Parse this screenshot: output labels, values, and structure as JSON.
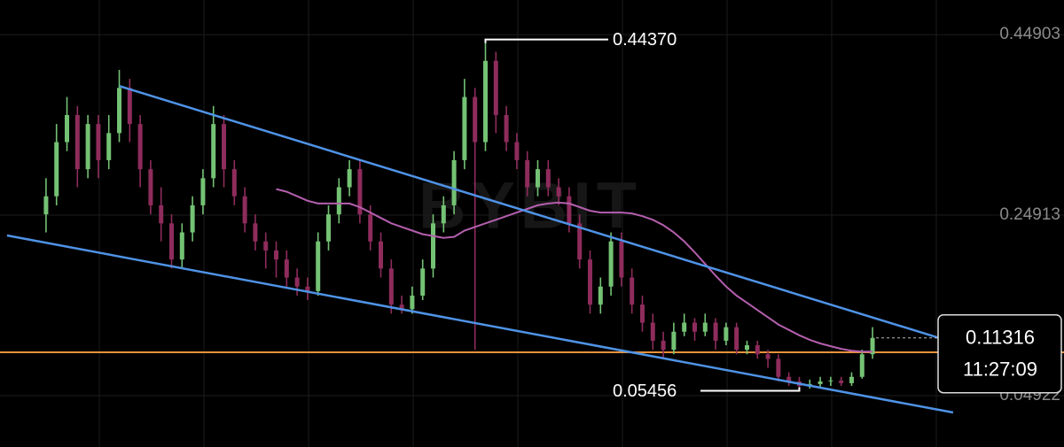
{
  "chart_data": {
    "type": "candlestick",
    "watermark": "BYBIT",
    "xlim": [
      -4.4,
      97.3
    ],
    "ylim": [
      -0.0077,
      0.4874
    ],
    "yticks": [
      0.44903,
      0.24913,
      0.04922
    ],
    "grid": true,
    "up_color": "#74c274",
    "down_color": "#8e2c5c",
    "candles": {
      "open": [
        0.25,
        0.27,
        0.33,
        0.36,
        0.3,
        0.35,
        0.31,
        0.34,
        0.39,
        0.35,
        0.3,
        0.26,
        0.24,
        0.2,
        0.23,
        0.26,
        0.29,
        0.35,
        0.3,
        0.27,
        0.24,
        0.22,
        0.21,
        0.2,
        0.18,
        0.17,
        0.165,
        0.22,
        0.25,
        0.28,
        0.3,
        0.25,
        0.22,
        0.19,
        0.15,
        0.145,
        0.16,
        0.19,
        0.24,
        0.26,
        0.31,
        0.38,
        0.33,
        0.42,
        0.36,
        0.33,
        0.31,
        0.28,
        0.3,
        0.28,
        0.27,
        0.24,
        0.2,
        0.15,
        0.17,
        0.22,
        0.18,
        0.15,
        0.13,
        0.11,
        0.1,
        0.12,
        0.13,
        0.12,
        0.13,
        0.11,
        0.125,
        0.1,
        0.105,
        0.095,
        0.09,
        0.07,
        0.065,
        0.06,
        0.062,
        0.065,
        0.066,
        0.063,
        0.07,
        0.095
      ],
      "high": [
        0.29,
        0.35,
        0.38,
        0.37,
        0.36,
        0.36,
        0.36,
        0.41,
        0.4,
        0.36,
        0.31,
        0.28,
        0.25,
        0.24,
        0.27,
        0.3,
        0.37,
        0.36,
        0.31,
        0.28,
        0.25,
        0.23,
        0.22,
        0.21,
        0.19,
        0.18,
        0.23,
        0.26,
        0.29,
        0.31,
        0.31,
        0.26,
        0.23,
        0.2,
        0.16,
        0.17,
        0.2,
        0.25,
        0.27,
        0.32,
        0.4,
        0.39,
        0.4437,
        0.43,
        0.37,
        0.34,
        0.32,
        0.31,
        0.31,
        0.29,
        0.28,
        0.25,
        0.21,
        0.18,
        0.23,
        0.23,
        0.19,
        0.16,
        0.14,
        0.12,
        0.13,
        0.14,
        0.135,
        0.14,
        0.135,
        0.13,
        0.13,
        0.11,
        0.11,
        0.1,
        0.095,
        0.075,
        0.07,
        0.067,
        0.07,
        0.07,
        0.07,
        0.075,
        0.1,
        0.125
      ],
      "low": [
        0.23,
        0.26,
        0.32,
        0.28,
        0.29,
        0.29,
        0.3,
        0.33,
        0.33,
        0.28,
        0.25,
        0.22,
        0.19,
        0.19,
        0.22,
        0.25,
        0.28,
        0.28,
        0.26,
        0.23,
        0.21,
        0.19,
        0.18,
        0.17,
        0.16,
        0.155,
        0.16,
        0.21,
        0.24,
        0.27,
        0.24,
        0.21,
        0.18,
        0.14,
        0.14,
        0.14,
        0.155,
        0.18,
        0.23,
        0.25,
        0.3,
        0.1,
        0.32,
        0.34,
        0.32,
        0.3,
        0.27,
        0.27,
        0.27,
        0.26,
        0.23,
        0.19,
        0.14,
        0.14,
        0.16,
        0.17,
        0.14,
        0.12,
        0.1,
        0.09,
        0.095,
        0.115,
        0.11,
        0.115,
        0.1,
        0.105,
        0.095,
        0.095,
        0.09,
        0.08,
        0.065,
        0.06,
        0.05456,
        0.057,
        0.058,
        0.06,
        0.06,
        0.06,
        0.068,
        0.09
      ],
      "close": [
        0.27,
        0.33,
        0.36,
        0.3,
        0.35,
        0.31,
        0.34,
        0.39,
        0.35,
        0.3,
        0.26,
        0.24,
        0.2,
        0.23,
        0.26,
        0.29,
        0.35,
        0.3,
        0.27,
        0.24,
        0.22,
        0.21,
        0.2,
        0.18,
        0.17,
        0.165,
        0.22,
        0.25,
        0.28,
        0.3,
        0.25,
        0.22,
        0.19,
        0.15,
        0.145,
        0.16,
        0.19,
        0.24,
        0.26,
        0.31,
        0.38,
        0.33,
        0.42,
        0.36,
        0.33,
        0.31,
        0.28,
        0.3,
        0.28,
        0.27,
        0.24,
        0.2,
        0.15,
        0.17,
        0.22,
        0.18,
        0.15,
        0.13,
        0.11,
        0.1,
        0.12,
        0.13,
        0.12,
        0.13,
        0.11,
        0.125,
        0.1,
        0.105,
        0.095,
        0.09,
        0.07,
        0.065,
        0.06,
        0.062,
        0.065,
        0.066,
        0.063,
        0.07,
        0.095,
        0.11316
      ]
    },
    "ma_color": "#b45fae",
    "ma": [
      null,
      null,
      null,
      null,
      null,
      null,
      null,
      null,
      null,
      null,
      null,
      null,
      null,
      null,
      null,
      null,
      null,
      null,
      null,
      null,
      null,
      null,
      0.278,
      0.275,
      0.27,
      0.265,
      0.262,
      0.262,
      0.262,
      0.262,
      0.258,
      0.252,
      0.246,
      0.24,
      0.236,
      0.232,
      0.228,
      0.226,
      0.224,
      0.225,
      0.232,
      0.236,
      0.24,
      0.244,
      0.248,
      0.252,
      0.256,
      0.26,
      0.262,
      0.263,
      0.262,
      0.258,
      0.254,
      0.252,
      0.252,
      0.252,
      0.251,
      0.248,
      0.244,
      0.238,
      0.23,
      0.22,
      0.208,
      0.195,
      0.182,
      0.17,
      0.16,
      0.152,
      0.144,
      0.136,
      0.128,
      0.122,
      0.116,
      0.111,
      0.107,
      0.104,
      0.101,
      0.099,
      0.098,
      0.098
    ],
    "trendline_color": "#4f93e6",
    "trendlines": [
      {
        "x": [
          7.03,
          85.4
        ],
        "y": [
          0.392,
          0.113
        ]
      },
      {
        "x": [
          -3.73,
          86.7
        ],
        "y": [
          0.2266,
          0.0305
        ]
      }
    ],
    "hline": 0.0972,
    "hline_color": "#e8923a",
    "high_annotation": {
      "value": 0.4437,
      "label": "0.44370"
    },
    "low_annotation": 0.05456,
    "last_price": 0.11316,
    "countdown": "11:27:09"
  }
}
